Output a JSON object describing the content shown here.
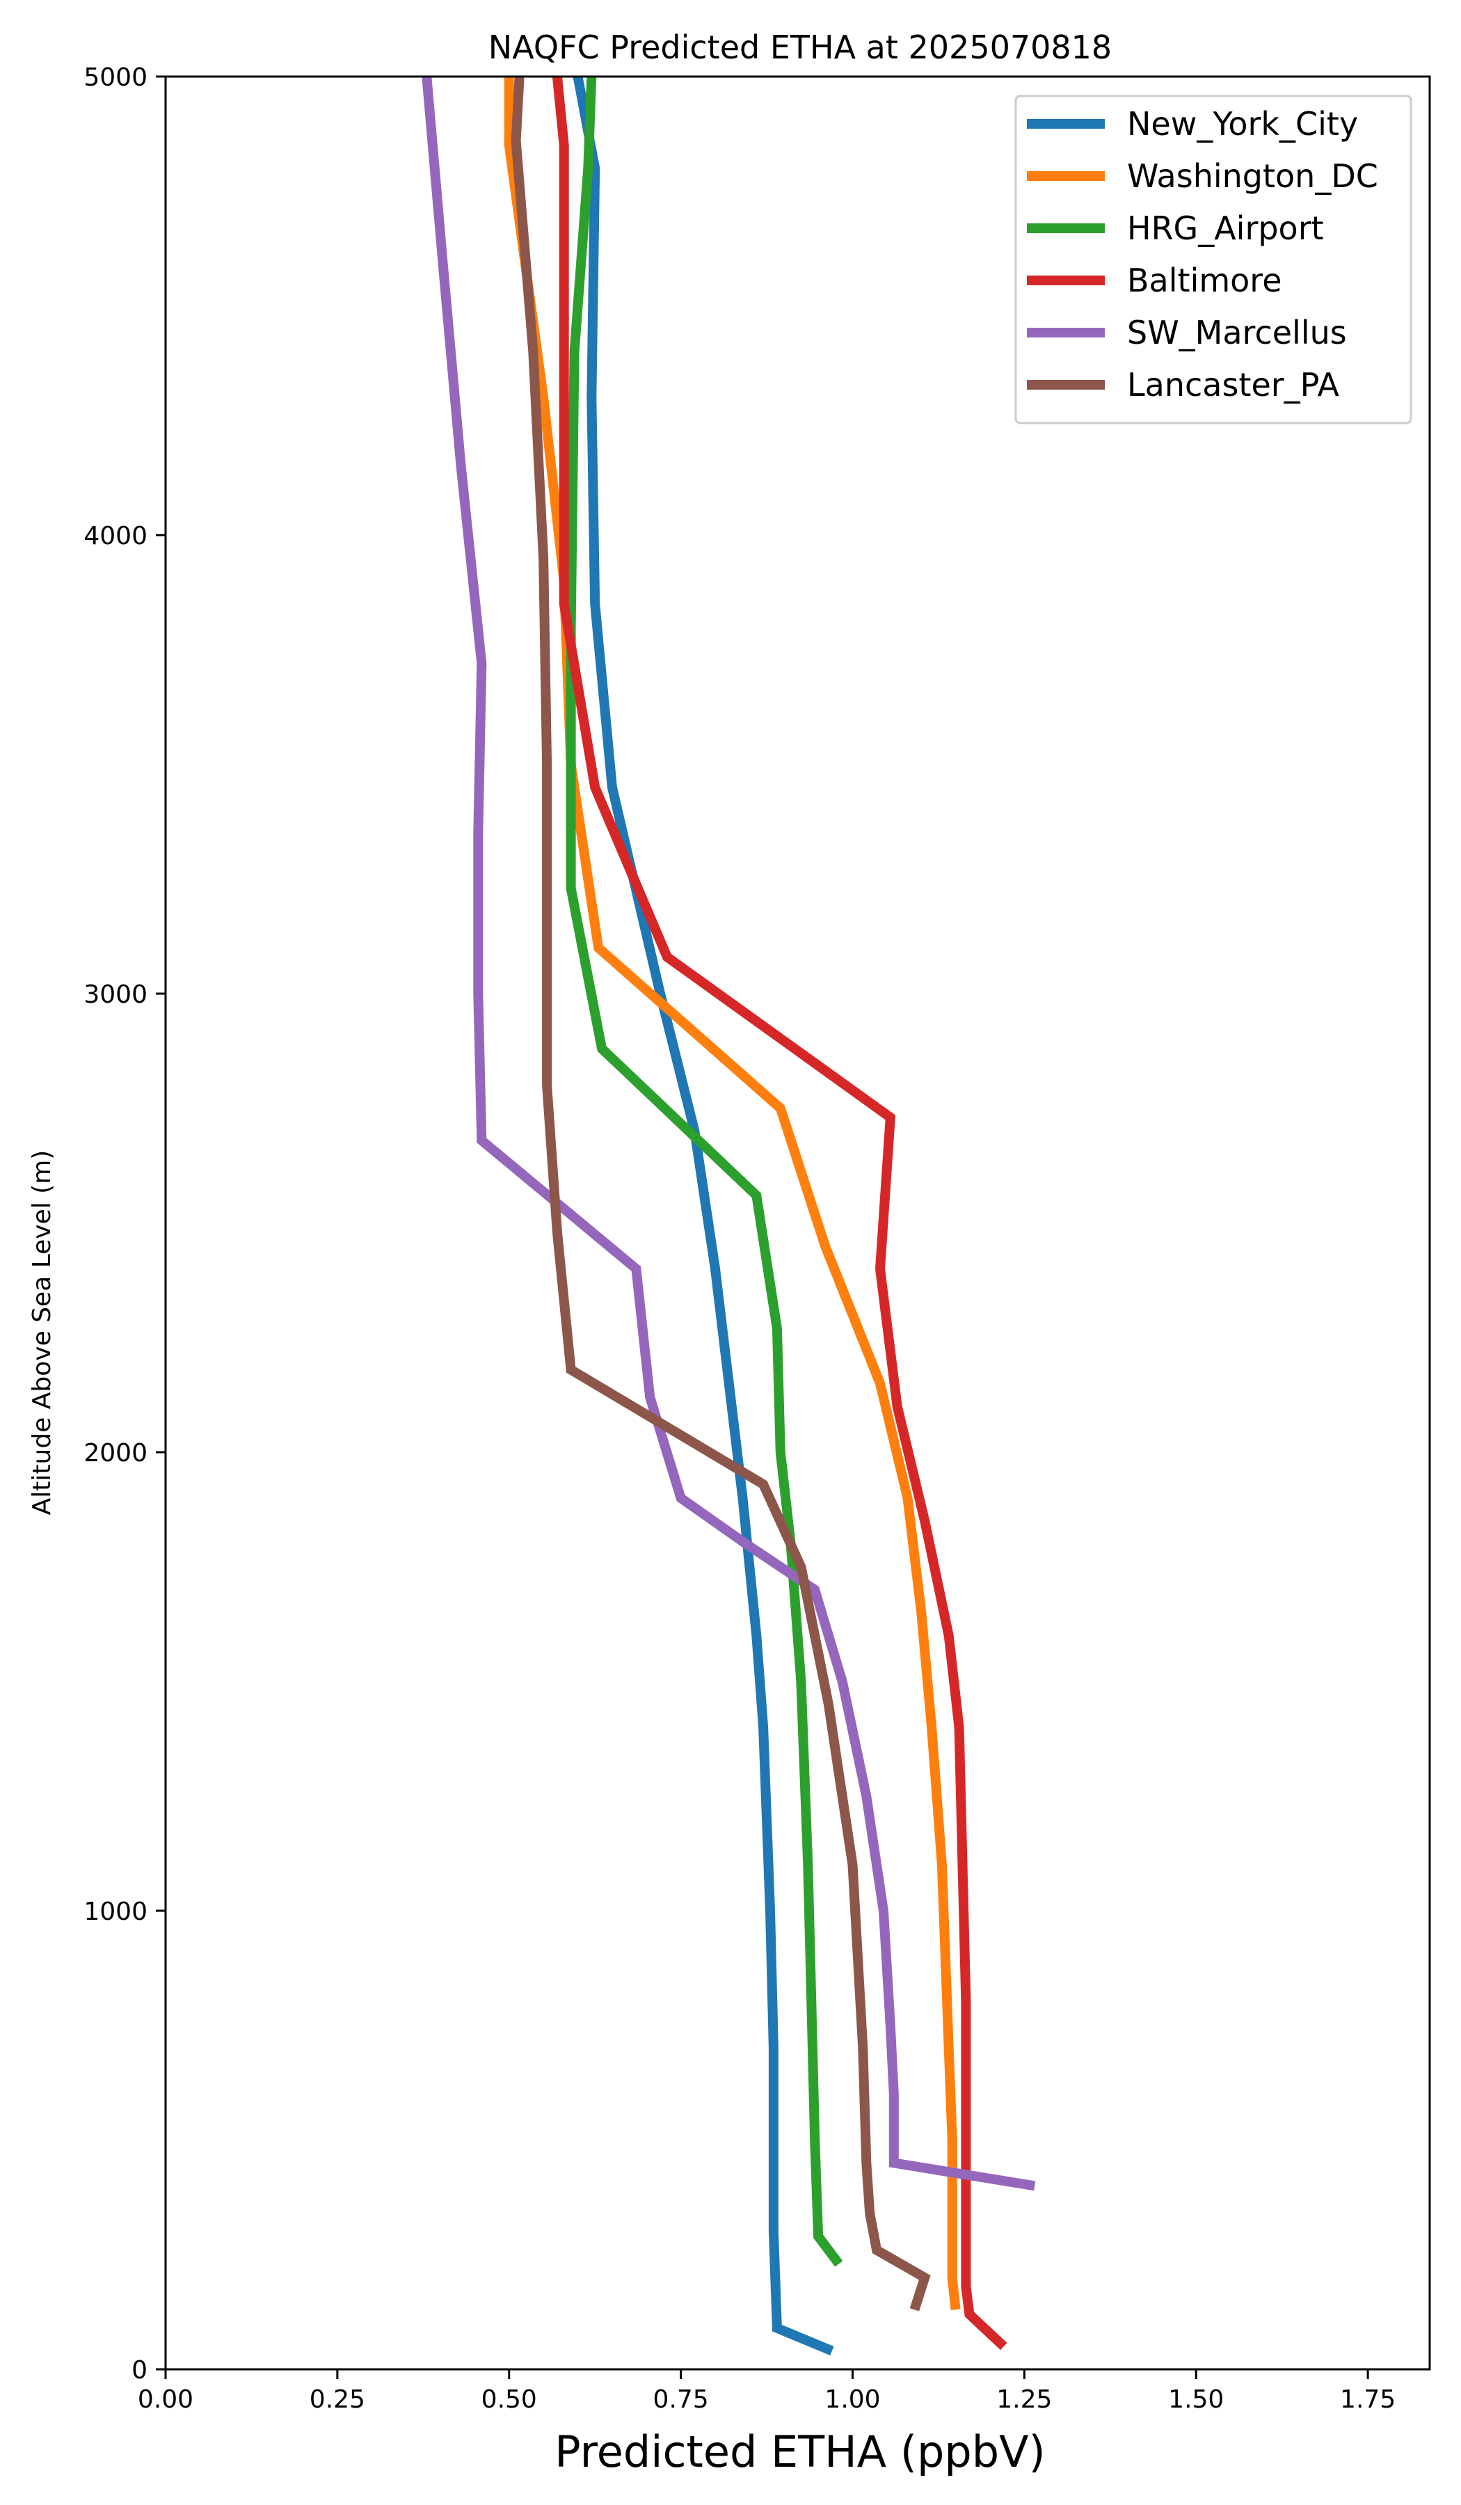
{
  "chart_data": {
    "type": "line",
    "title": "NAQFC Predicted ETHA at 2025070818",
    "xlabel": "Predicted ETHA (ppbV)",
    "ylabel": "Altitude Above Sea Level (m)",
    "xlim": [
      0.0,
      1.84
    ],
    "ylim": [
      0,
      5000
    ],
    "x_ticks": [
      "0.00",
      "0.25",
      "0.50",
      "0.75",
      "1.00",
      "1.25",
      "1.50",
      "1.75"
    ],
    "x_tick_values": [
      0,
      0.25,
      0.5,
      0.75,
      1.0,
      1.25,
      1.5,
      1.75
    ],
    "y_ticks": [
      "0",
      "1000",
      "2000",
      "3000",
      "4000",
      "5000"
    ],
    "y_tick_values": [
      0,
      1000,
      2000,
      3000,
      4000,
      5000
    ],
    "grid": false,
    "legend_position": "top-right",
    "series": [
      {
        "name": "New_York_City",
        "color": "#1f77b4",
        "points": [
          [
            0.97,
            40
          ],
          [
            0.89,
            90
          ],
          [
            0.885,
            300
          ],
          [
            0.885,
            700
          ],
          [
            0.88,
            1000
          ],
          [
            0.87,
            1400
          ],
          [
            0.86,
            1600
          ],
          [
            0.84,
            1900
          ],
          [
            0.8,
            2400
          ],
          [
            0.77,
            2700
          ],
          [
            0.72,
            3000
          ],
          [
            0.65,
            3450
          ],
          [
            0.625,
            3850
          ],
          [
            0.62,
            4300
          ],
          [
            0.625,
            4800
          ],
          [
            0.6,
            5000
          ]
        ]
      },
      {
        "name": "Washington_DC",
        "color": "#ff7f0e",
        "points": [
          [
            1.15,
            130
          ],
          [
            1.145,
            200
          ],
          [
            1.145,
            500
          ],
          [
            1.14,
            700
          ],
          [
            1.13,
            1100
          ],
          [
            1.115,
            1400
          ],
          [
            1.1,
            1650
          ],
          [
            1.08,
            1900
          ],
          [
            1.04,
            2150
          ],
          [
            0.96,
            2450
          ],
          [
            0.895,
            2750
          ],
          [
            0.63,
            3100
          ],
          [
            0.59,
            3500
          ],
          [
            0.58,
            3900
          ],
          [
            0.55,
            4300
          ],
          [
            0.5,
            4850
          ],
          [
            0.5,
            5000
          ]
        ]
      },
      {
        "name": "HRG_Airport",
        "color": "#2ca02c",
        "points": [
          [
            0.98,
            230
          ],
          [
            0.95,
            290
          ],
          [
            0.945,
            500
          ],
          [
            0.94,
            800
          ],
          [
            0.935,
            1100
          ],
          [
            0.925,
            1500
          ],
          [
            0.91,
            1800
          ],
          [
            0.895,
            2000
          ],
          [
            0.89,
            2270
          ],
          [
            0.86,
            2560
          ],
          [
            0.635,
            2880
          ],
          [
            0.59,
            3230
          ],
          [
            0.59,
            3800
          ],
          [
            0.595,
            4400
          ],
          [
            0.615,
            4800
          ],
          [
            0.62,
            5000
          ]
        ]
      },
      {
        "name": "Baltimore",
        "color": "#d62728",
        "points": [
          [
            1.22,
            50
          ],
          [
            1.17,
            120
          ],
          [
            1.165,
            180
          ],
          [
            1.165,
            500
          ],
          [
            1.165,
            800
          ],
          [
            1.16,
            1100
          ],
          [
            1.155,
            1400
          ],
          [
            1.14,
            1600
          ],
          [
            1.105,
            1850
          ],
          [
            1.065,
            2100
          ],
          [
            1.04,
            2400
          ],
          [
            1.055,
            2730
          ],
          [
            0.73,
            3080
          ],
          [
            0.625,
            3450
          ],
          [
            0.58,
            3850
          ],
          [
            0.58,
            4400
          ],
          [
            0.58,
            4850
          ],
          [
            0.57,
            5000
          ]
        ]
      },
      {
        "name": "SW_Marcellus",
        "color": "#9467bd",
        "points": [
          [
            1.265,
            400
          ],
          [
            1.06,
            450
          ],
          [
            1.06,
            600
          ],
          [
            1.055,
            750
          ],
          [
            1.045,
            1000
          ],
          [
            1.02,
            1250
          ],
          [
            0.985,
            1500
          ],
          [
            0.945,
            1700
          ],
          [
            0.845,
            1800
          ],
          [
            0.75,
            1900
          ],
          [
            0.705,
            2120
          ],
          [
            0.685,
            2400
          ],
          [
            0.46,
            2680
          ],
          [
            0.455,
            3000
          ],
          [
            0.455,
            3350
          ],
          [
            0.46,
            3720
          ],
          [
            0.43,
            4150
          ],
          [
            0.405,
            4570
          ],
          [
            0.38,
            5000
          ]
        ]
      },
      {
        "name": "Lancaster_PA",
        "color": "#8c564b",
        "points": [
          [
            1.09,
            130
          ],
          [
            1.105,
            200
          ],
          [
            1.035,
            260
          ],
          [
            1.025,
            340
          ],
          [
            1.02,
            450
          ],
          [
            1.015,
            700
          ],
          [
            1.0,
            1100
          ],
          [
            0.965,
            1450
          ],
          [
            0.925,
            1750
          ],
          [
            0.87,
            1930
          ],
          [
            0.59,
            2180
          ],
          [
            0.57,
            2480
          ],
          [
            0.555,
            2800
          ],
          [
            0.555,
            3150
          ],
          [
            0.555,
            3500
          ],
          [
            0.55,
            3950
          ],
          [
            0.535,
            4400
          ],
          [
            0.51,
            4860
          ],
          [
            0.515,
            5000
          ]
        ]
      }
    ]
  }
}
